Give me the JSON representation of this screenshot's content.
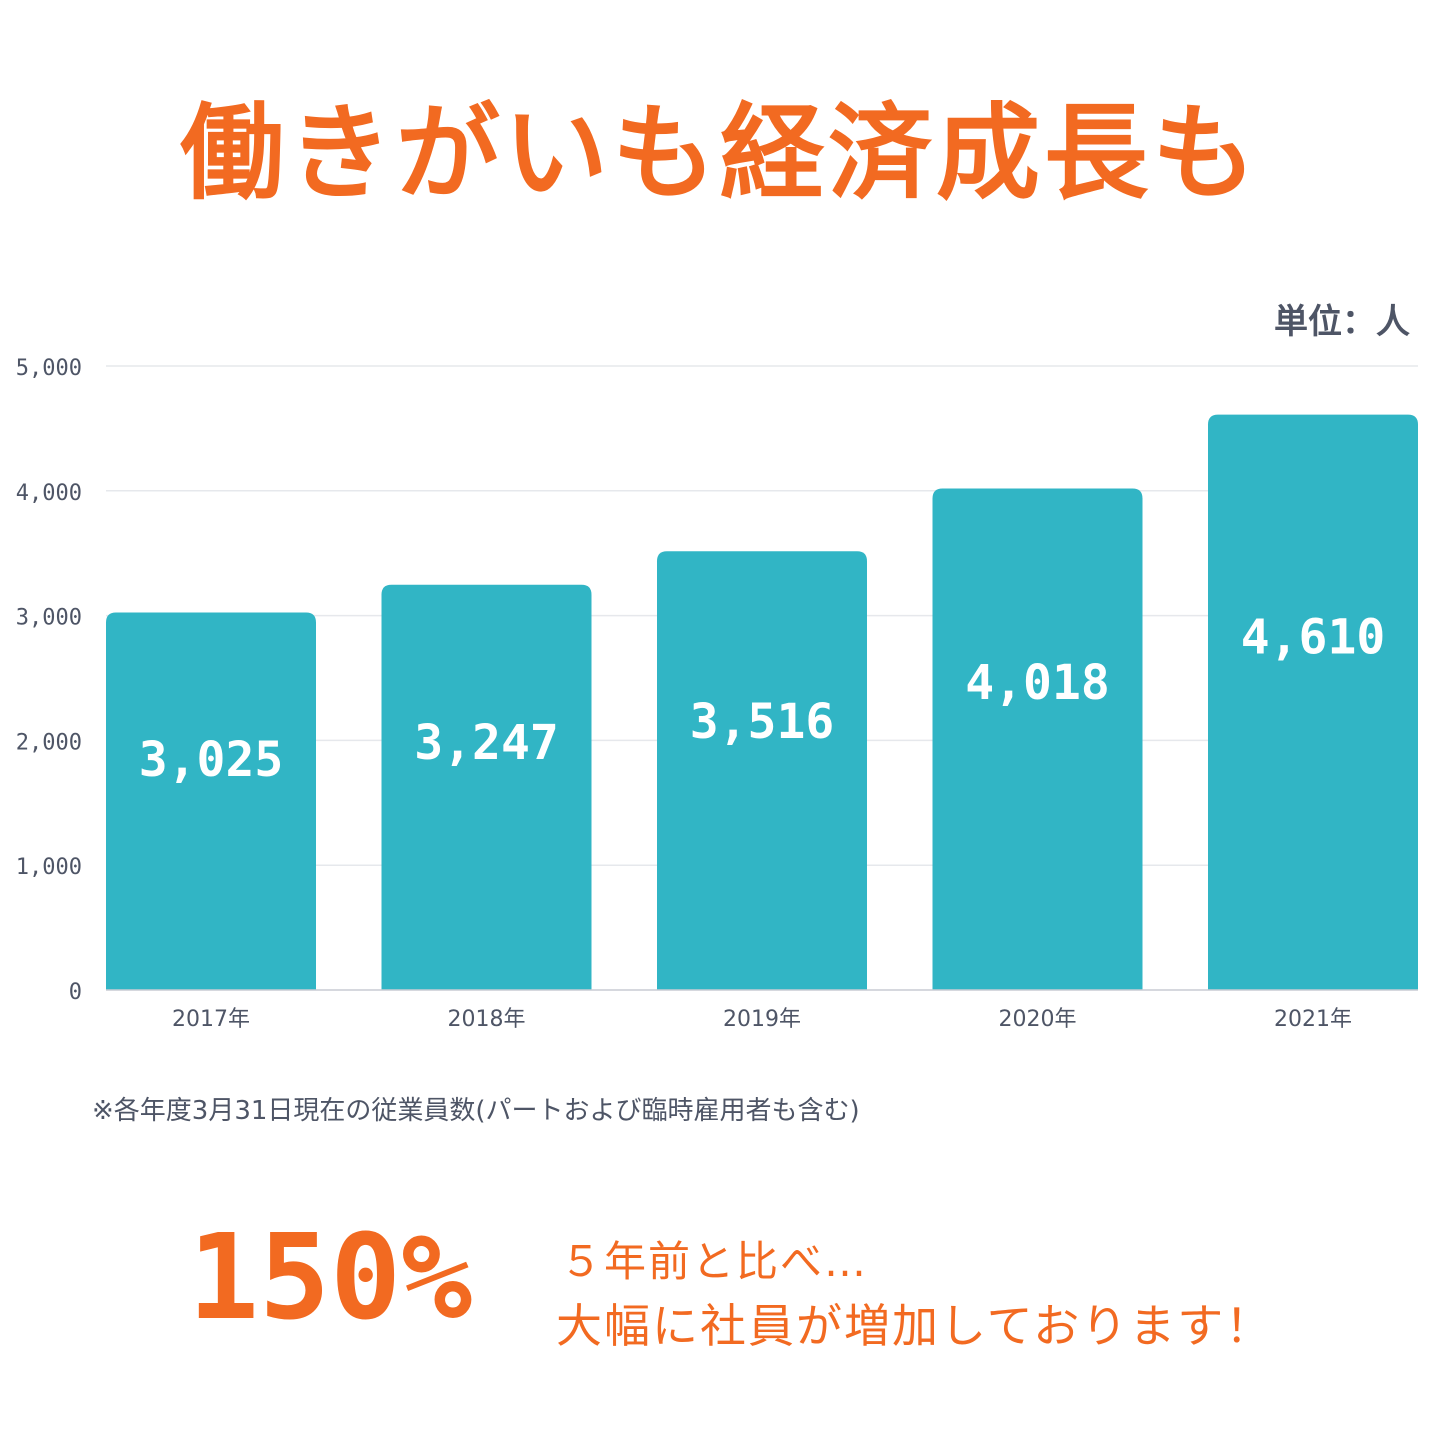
{
  "header": {
    "title": "働きがいも経済成長も"
  },
  "unit_label": "単位：人",
  "footnote": "※各年度3月31日現在の従業員数(パートおよび臨時雇用者も含む)",
  "highlight": {
    "percent": "150%",
    "line1": "５年前と比べ…",
    "line2": "大幅に社員が増加しております！"
  },
  "colors": {
    "bar": "#31b5c5",
    "accent": "#f26a21",
    "text": "#4e5566",
    "grid": "#e6e8ec"
  },
  "chart_data": {
    "type": "bar",
    "categories": [
      "2017年",
      "2018年",
      "2019年",
      "2020年",
      "2021年"
    ],
    "values": [
      3025,
      3247,
      3516,
      4018,
      4610
    ],
    "value_labels": [
      "3,025",
      "3,247",
      "3,516",
      "4,018",
      "4,610"
    ],
    "y_ticks": [
      0,
      1000,
      2000,
      3000,
      4000,
      5000
    ],
    "y_tick_labels": [
      "0",
      "1,000",
      "2,000",
      "3,000",
      "4,000",
      "5,000"
    ],
    "ylim": [
      0,
      5000
    ],
    "grid": true,
    "title": "",
    "xlabel": "",
    "ylabel": ""
  }
}
